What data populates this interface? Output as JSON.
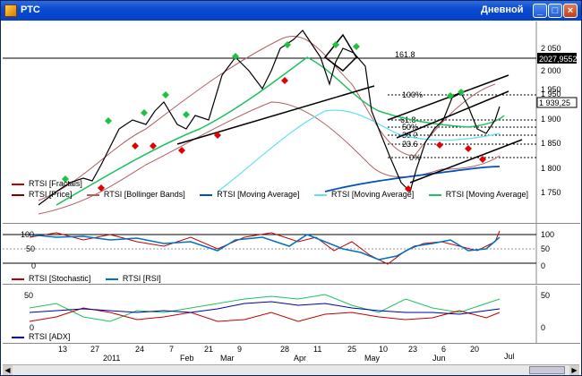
{
  "window": {
    "title": "РТС",
    "period": "Дневной",
    "buttons": {
      "minimize": "_",
      "maximize": "□",
      "close": "×"
    }
  },
  "main": {
    "y_ticks": [
      "2 050",
      "2 000",
      "1 950",
      "1 900",
      "1 850",
      "1 800",
      "1 750"
    ],
    "fib_labels": [
      "161.8",
      "100%",
      "61.8",
      "50%",
      "38.2",
      "23.6",
      "0%"
    ],
    "price_box_1": "2027,9552",
    "price_box_2": "1 939,25",
    "price_box_top": "1 950",
    "legend": [
      {
        "label": "RTSI [Fractals]",
        "color": "#c00000"
      },
      {
        "label": "RTSI [Price]",
        "color": "#800000"
      },
      {
        "label": "RTSI [Bollinger Bands]",
        "color": "#b06060"
      },
      {
        "label": "RTSI [Moving Average]",
        "color": "#0050c0"
      },
      {
        "label": "RTSI [Moving Average]",
        "color": "#60e0f0"
      },
      {
        "label": "RTSI [Moving Average]",
        "color": "#20c060"
      }
    ]
  },
  "osc": {
    "y_ticks": [
      "100",
      "50",
      "0"
    ],
    "legend": [
      {
        "label": "RTSI [Stochastic]",
        "color": "#c00000"
      },
      {
        "label": "RTSI [RSI]",
        "color": "#0070c0"
      }
    ]
  },
  "adx": {
    "y_ticks": [
      "50",
      "0"
    ],
    "legend": [
      {
        "label": "RTSI [ADX]",
        "color": "#0000a0"
      }
    ]
  },
  "xaxis": {
    "days": [
      "13",
      "27",
      "24",
      "7",
      "21",
      "9",
      "28",
      "11",
      "25",
      "10",
      "23",
      "6",
      "20",
      "Jul"
    ],
    "months": [
      "2011",
      "Feb",
      "Mar",
      "Apr",
      "May",
      "Jun"
    ]
  }
}
